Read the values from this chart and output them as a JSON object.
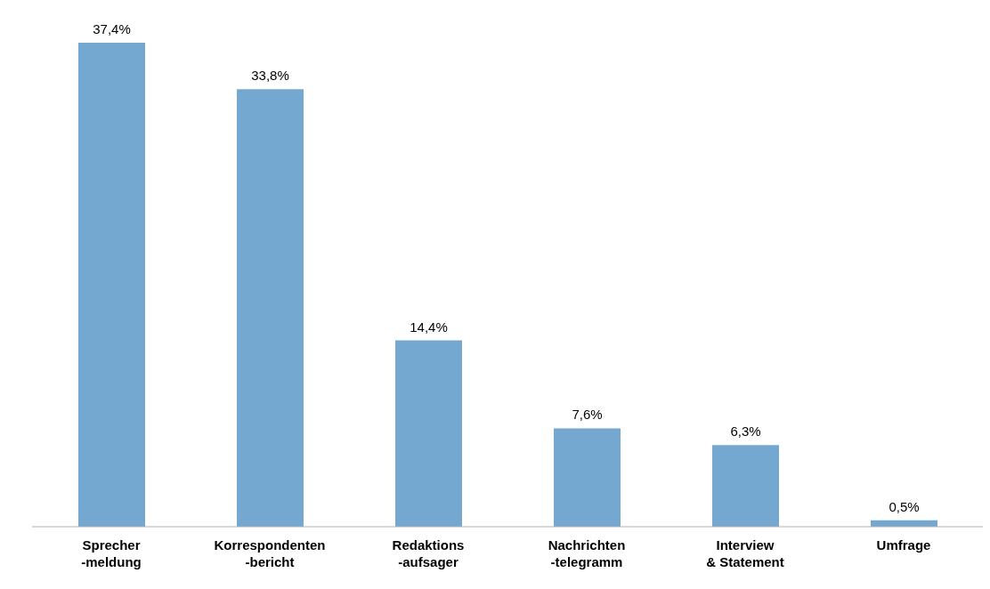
{
  "chart_data": {
    "type": "bar",
    "categories": [
      "Sprecher\n-meldung",
      "Korrespondenten\n-bericht",
      "Redaktions\n-aufsager",
      "Nachrichten\n-telegramm",
      "Interview\n& Statement",
      "Umfrage"
    ],
    "values": [
      37.4,
      33.8,
      14.4,
      7.6,
      6.3,
      0.5
    ],
    "value_labels": [
      "37,4%",
      "33,8%",
      "14,4%",
      "7,6%",
      "6,3%",
      "0,5%"
    ],
    "color": "#75a8d1",
    "grid": false,
    "legend": false
  }
}
